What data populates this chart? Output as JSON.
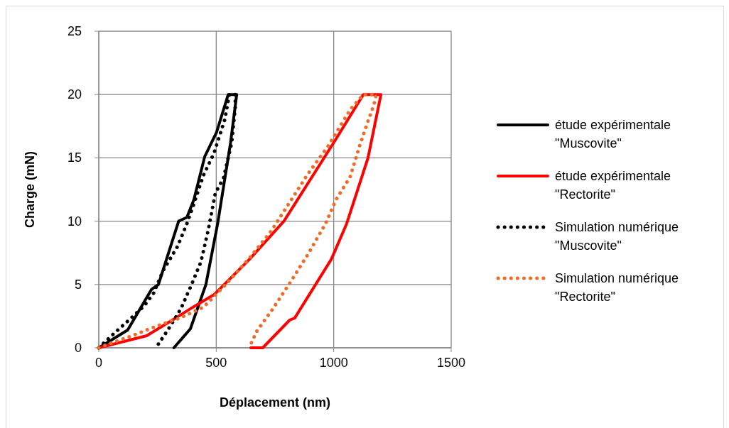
{
  "chart_data": {
    "type": "line",
    "xlabel": "Déplacement (nm)",
    "ylabel": "Charge (mN)",
    "xlim": [
      0,
      1500
    ],
    "ylim": [
      0,
      25
    ],
    "xticks": [
      0,
      500,
      1000,
      1500
    ],
    "yticks": [
      0,
      5,
      10,
      15,
      20,
      25
    ],
    "grid": true,
    "legend": "right",
    "marker": "none",
    "series": [
      {
        "name": "étude expérimentale \"Muscovite\"",
        "color": "#000000",
        "line_style": "solid",
        "x": [
          0,
          123,
          224,
          254,
          340,
          375,
          405,
          451,
          501,
          551,
          587,
          561,
          506,
          456,
          390,
          320
        ],
        "values": [
          0,
          1.4,
          4.6,
          5,
          10,
          10.3,
          11.7,
          15.1,
          17,
          20,
          20,
          16.2,
          9.8,
          5,
          1.5,
          0
        ]
      },
      {
        "name": "étude expérimentale \"Rectorite\"",
        "color": "#ff0000",
        "line_style": "solid",
        "x": [
          0,
          204,
          314,
          400,
          491,
          642,
          788,
          1000,
          1126,
          1201,
          1146,
          1055,
          990,
          834,
          813,
          698,
          647
        ],
        "values": [
          0,
          0.95,
          2.2,
          3.2,
          4.2,
          7,
          10,
          16.2,
          20,
          20,
          15,
          9.8,
          7,
          2.35,
          2.2,
          0,
          0
        ]
      },
      {
        "name": "Simulation numérique \"Muscovite\"",
        "color": "#000000",
        "line_style": "dotted",
        "x": [
          0,
          57,
          138,
          193,
          233,
          274,
          335,
          375,
          400,
          445,
          491,
          536,
          556,
          581,
          581,
          566,
          531,
          496,
          466,
          435,
          395,
          350,
          294,
          254,
          245
        ],
        "values": [
          0,
          1,
          2.35,
          3.3,
          4.3,
          6.1,
          8,
          9.8,
          11.1,
          13.6,
          15.4,
          18,
          20,
          20,
          19,
          16.2,
          13.4,
          12.2,
          9.3,
          6.8,
          5,
          3.1,
          1.4,
          0.3,
          0
        ]
      },
      {
        "name": "Simulation numérique \"Rectorite\"",
        "color": "#ed6d2b",
        "line_style": "dotted",
        "x": [
          0,
          42,
          142,
          244,
          345,
          445,
          546,
          642,
          733,
          813,
          889,
          975,
          1070,
          1126,
          1181,
          1171,
          1146,
          1111,
          1070,
          1010,
          965,
          894,
          818,
          738,
          672,
          640
        ],
        "values": [
          0,
          0.3,
          0.95,
          1.7,
          2.35,
          3.2,
          5.1,
          7.1,
          9.2,
          11.5,
          13.7,
          15.9,
          18.8,
          20,
          20,
          19.2,
          17.9,
          16,
          13.5,
          11.7,
          9.8,
          7.5,
          5.25,
          3,
          1.3,
          0
        ]
      }
    ]
  }
}
